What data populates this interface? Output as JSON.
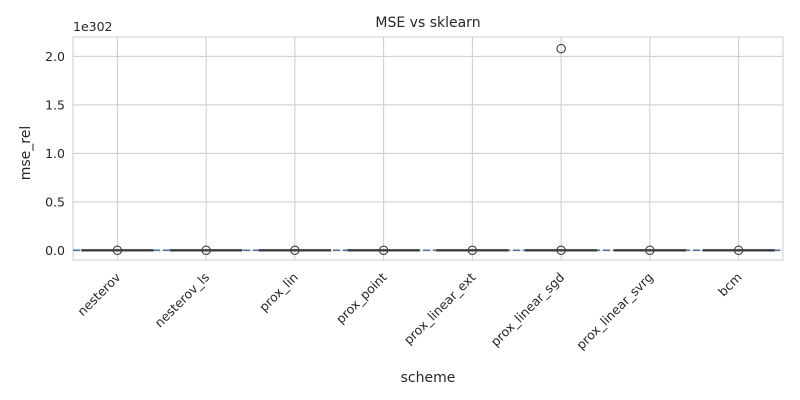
{
  "chart_data": {
    "type": "box",
    "title": "MSE vs sklearn",
    "xlabel": "scheme",
    "ylabel": "mse_rel",
    "y_offset_text": "1e302",
    "categories": [
      "nesterov",
      "nesterov_ls",
      "prox_lin",
      "prox_point",
      "prox_linear_ext",
      "prox_linear_sgd",
      "prox_linear_svrg",
      "bcm"
    ],
    "yticks": [
      0.0,
      0.5,
      1.0,
      1.5,
      2.0
    ],
    "ytick_labels": [
      "0.0",
      "0.5",
      "1.0",
      "1.5",
      "2.0"
    ],
    "ylim": [
      -0.1,
      2.2
    ],
    "y_scale_factor": "1e302",
    "boxes": [
      {
        "category": "nesterov",
        "q1": 0,
        "median": 0,
        "q3": 0,
        "whisker_low": 0,
        "whisker_high": 0,
        "outliers": [
          0
        ]
      },
      {
        "category": "nesterov_ls",
        "q1": 0,
        "median": 0,
        "q3": 0,
        "whisker_low": 0,
        "whisker_high": 0,
        "outliers": [
          0
        ]
      },
      {
        "category": "prox_lin",
        "q1": 0,
        "median": 0,
        "q3": 0,
        "whisker_low": 0,
        "whisker_high": 0,
        "outliers": [
          0
        ]
      },
      {
        "category": "prox_point",
        "q1": 0,
        "median": 0,
        "q3": 0,
        "whisker_low": 0,
        "whisker_high": 0,
        "outliers": [
          0
        ]
      },
      {
        "category": "prox_linear_ext",
        "q1": 0,
        "median": 0,
        "q3": 0,
        "whisker_low": 0,
        "whisker_high": 0,
        "outliers": [
          0
        ]
      },
      {
        "category": "prox_linear_sgd",
        "q1": 0,
        "median": 0,
        "q3": 0,
        "whisker_low": 0,
        "whisker_high": 0,
        "outliers": [
          0,
          2.08
        ]
      },
      {
        "category": "prox_linear_svrg",
        "q1": 0,
        "median": 0,
        "q3": 0,
        "whisker_low": 0,
        "whisker_high": 0,
        "outliers": [
          0
        ]
      },
      {
        "category": "bcm",
        "q1": 0,
        "median": 0,
        "q3": 0,
        "whisker_low": 0,
        "whisker_high": 0,
        "outliers": [
          0
        ]
      }
    ],
    "reference_line": {
      "y": 0,
      "style": "dashed",
      "color": "#4c72b0"
    },
    "grid": true,
    "legend": "none",
    "colors": {
      "grid": "#cccccc",
      "frame": "#cccccc",
      "box_line": "#3f3f3f",
      "reference": "#4c72b0",
      "text": "#262626"
    }
  }
}
